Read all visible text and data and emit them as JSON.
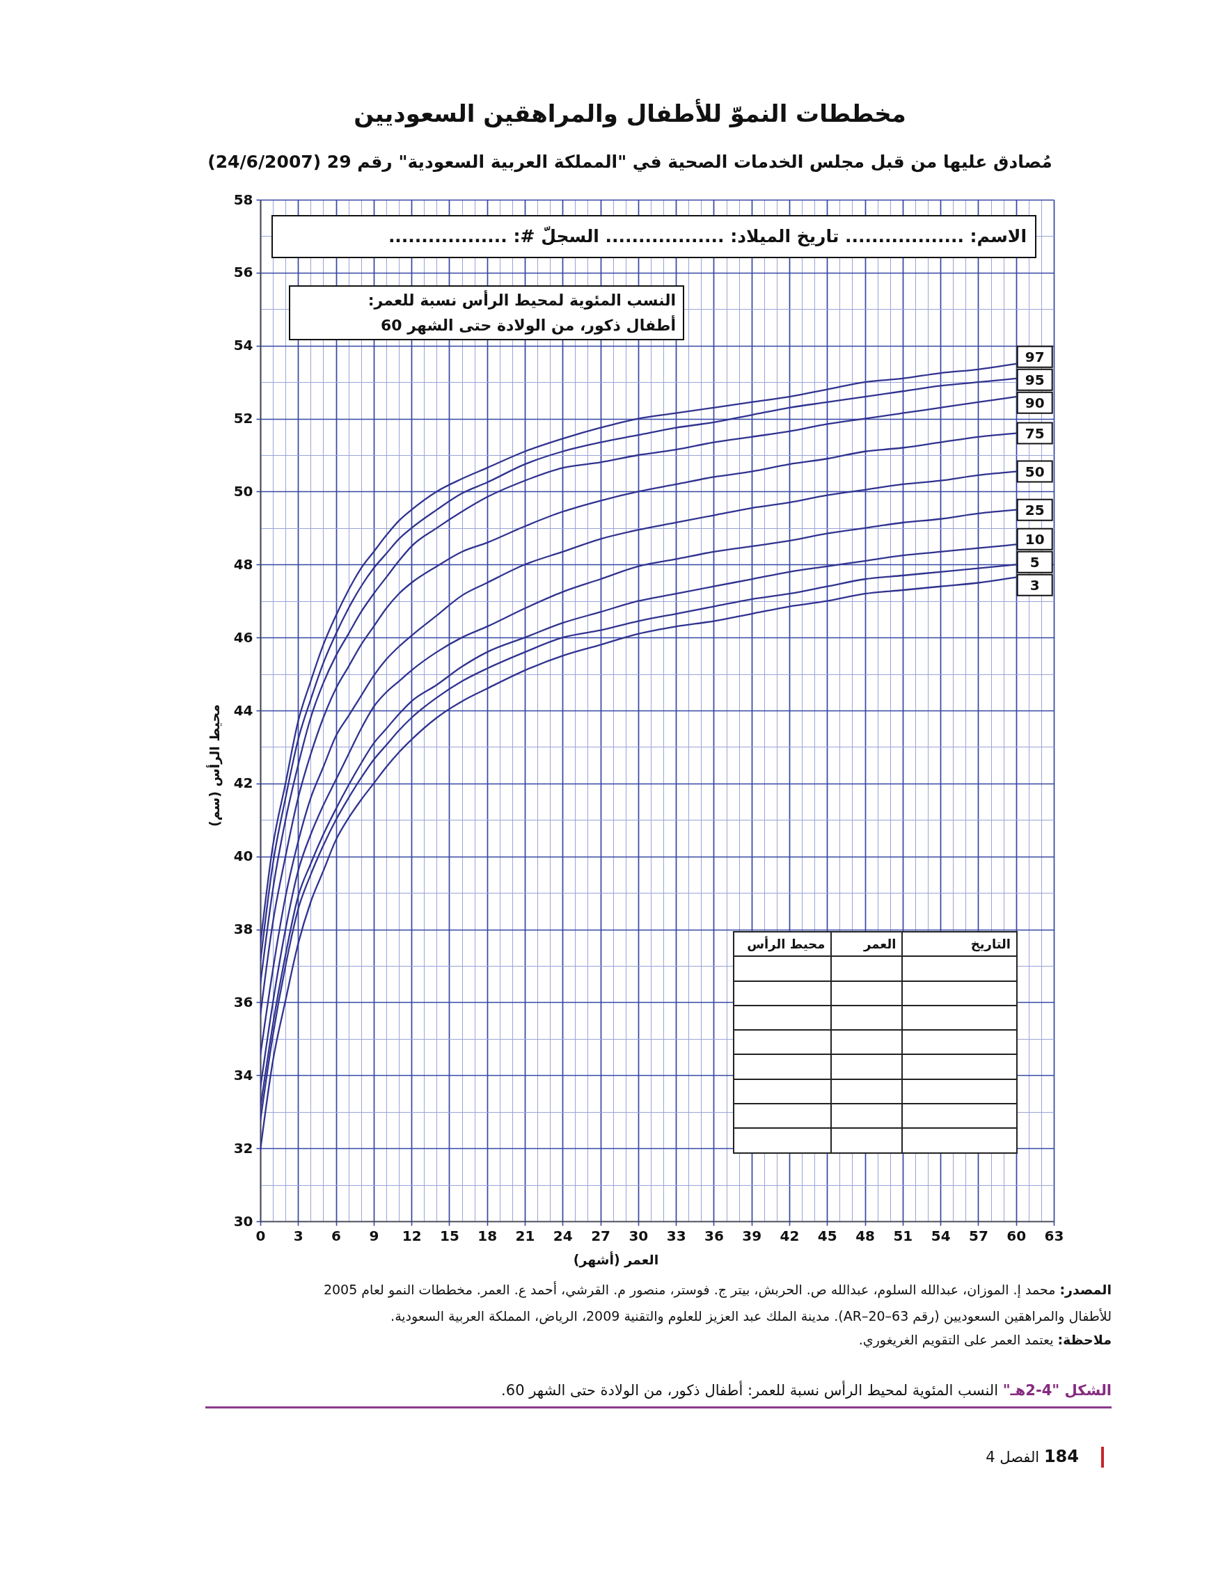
{
  "chart_data": {
    "type": "line",
    "title": "مخططات النموّ للأطفال والمراهقين السعوديين",
    "subtitle": "مُصادق عليها من قبل مجلس الخدمات الصحية في \"المملكة العربية السعودية\" رقم 29 (24/6/2007)",
    "xlabel": "العمر (أشهر)",
    "ylabel": "محيط الرأس (سم)",
    "annotations": [
      "الاسم: .................. تاريخ الميلاد: .................. السجلّ #: ..................",
      "النسب المئوية لمحيط الرأس نسبة للعمر:",
      "أطفال ذكور، من الولادة حتى الشهر 60",
      "التاريخ",
      "العمر",
      "محيط الرأس",
      "المصدر:",
      "محمد إ. الموزان، عبدالله السلوم، عبدالله ص. الحربش، بيتر ج. فوستر، منصور م. القرشي، أحمد ع. العمر. مخططات النمو لعام 2005",
      "للأطفال والمراهقين السعوديين (رقم AR–20–63). مدينة الملك عبد العزيز للعلوم والتقنية 2009، الرياض، المملكة العربية السعودية.",
      "ملاحظة:",
      "يعتمد العمر على التقويم الغريغوري.",
      "الشكل \"4-2هـ\"",
      "النسب المئوية لمحيط الرأس نسبة للعمر: أطفال ذكور، من الولادة حتى الشهر 60.",
      "184",
      "الفصل 4"
    ],
    "x": [
      0,
      1,
      2,
      3,
      4,
      5,
      6,
      7,
      8,
      9,
      10,
      11,
      12,
      14,
      16,
      18,
      21,
      24,
      27,
      30,
      33,
      36,
      39,
      42,
      45,
      48,
      51,
      54,
      57,
      60
    ],
    "series": [
      {
        "name": "97",
        "color": "#30338f",
        "values": [
          37.6,
          40.3,
          42.0,
          43.7,
          44.8,
          45.8,
          46.6,
          47.3,
          47.9,
          48.35,
          48.8,
          49.2,
          49.5,
          50.0,
          50.35,
          50.65,
          51.1,
          51.45,
          51.75,
          52.0,
          52.15,
          52.3,
          52.45,
          52.6,
          52.8,
          53.0,
          53.1,
          53.25,
          53.35,
          53.5
        ]
      },
      {
        "name": "95",
        "color": "#30338f",
        "values": [
          37.1,
          39.8,
          41.6,
          43.2,
          44.3,
          45.3,
          46.1,
          46.8,
          47.4,
          47.9,
          48.3,
          48.7,
          49.0,
          49.5,
          49.95,
          50.25,
          50.75,
          51.1,
          51.35,
          51.55,
          51.75,
          51.9,
          52.1,
          52.3,
          52.45,
          52.6,
          52.75,
          52.9,
          53.0,
          53.1
        ]
      },
      {
        "name": "90",
        "color": "#30338f",
        "values": [
          36.5,
          39.1,
          41.0,
          42.5,
          43.8,
          44.75,
          45.5,
          46.1,
          46.7,
          47.2,
          47.65,
          48.1,
          48.5,
          49.0,
          49.45,
          49.85,
          50.3,
          50.65,
          50.8,
          51.0,
          51.15,
          51.35,
          51.5,
          51.65,
          51.85,
          52.0,
          52.15,
          52.3,
          52.45,
          52.6
        ]
      },
      {
        "name": "75",
        "color": "#30338f",
        "values": [
          35.65,
          38.2,
          40.0,
          41.6,
          42.8,
          43.8,
          44.6,
          45.2,
          45.8,
          46.3,
          46.8,
          47.2,
          47.5,
          47.95,
          48.35,
          48.6,
          49.05,
          49.45,
          49.75,
          50.0,
          50.2,
          50.4,
          50.55,
          50.75,
          50.9,
          51.1,
          51.2,
          51.35,
          51.5,
          51.6
        ]
      },
      {
        "name": "50",
        "color": "#30338f",
        "values": [
          34.55,
          36.9,
          38.9,
          40.4,
          41.6,
          42.45,
          43.3,
          43.85,
          44.4,
          44.95,
          45.4,
          45.75,
          46.05,
          46.6,
          47.15,
          47.5,
          48.0,
          48.35,
          48.7,
          48.95,
          49.15,
          49.35,
          49.55,
          49.7,
          49.9,
          50.05,
          50.2,
          50.3,
          50.45,
          50.55
        ]
      },
      {
        "name": "25",
        "color": "#30338f",
        "values": [
          33.65,
          36.0,
          38.0,
          39.6,
          40.6,
          41.4,
          42.1,
          42.8,
          43.5,
          44.1,
          44.5,
          44.8,
          45.1,
          45.6,
          46.0,
          46.3,
          46.8,
          47.25,
          47.6,
          47.95,
          48.15,
          48.35,
          48.5,
          48.65,
          48.85,
          49.0,
          49.15,
          49.25,
          49.4,
          49.5
        ]
      },
      {
        "name": "10",
        "color": "#30338f",
        "values": [
          33.1,
          35.4,
          37.3,
          38.9,
          39.8,
          40.6,
          41.3,
          41.95,
          42.55,
          43.1,
          43.5,
          43.9,
          44.25,
          44.7,
          45.2,
          45.6,
          46.0,
          46.4,
          46.7,
          47.0,
          47.2,
          47.4,
          47.6,
          47.8,
          47.95,
          48.1,
          48.25,
          48.35,
          48.45,
          48.55
        ]
      },
      {
        "name": "5",
        "color": "#30338f",
        "values": [
          32.75,
          35.1,
          37.0,
          38.55,
          39.5,
          40.3,
          41.0,
          41.6,
          42.15,
          42.65,
          43.05,
          43.45,
          43.8,
          44.35,
          44.8,
          45.15,
          45.6,
          46.0,
          46.2,
          46.45,
          46.65,
          46.85,
          47.05,
          47.2,
          47.4,
          47.6,
          47.7,
          47.8,
          47.9,
          48.0
        ]
      },
      {
        "name": "3",
        "color": "#30338f",
        "values": [
          31.95,
          34.4,
          36.05,
          37.6,
          38.75,
          39.6,
          40.45,
          41.05,
          41.55,
          42.0,
          42.45,
          42.85,
          43.2,
          43.8,
          44.25,
          44.6,
          45.1,
          45.5,
          45.8,
          46.1,
          46.3,
          46.45,
          46.65,
          46.85,
          47.0,
          47.2,
          47.3,
          47.4,
          47.5,
          47.65
        ]
      }
    ],
    "xlim": [
      0,
      63
    ],
    "xticks": [
      0,
      {
        "value": 1,
        "label": null
      },
      {
        "value": 2,
        "label": null
      },
      3,
      {
        "value": 4,
        "label": null
      },
      {
        "value": 5,
        "label": null
      },
      6,
      {
        "value": 7,
        "label": null
      },
      {
        "value": 8,
        "label": null
      },
      9,
      {
        "value": 10,
        "label": null
      },
      {
        "value": 11,
        "label": null
      },
      12,
      {
        "value": 13,
        "label": null
      },
      {
        "value": 14,
        "label": null
      },
      15,
      {
        "value": 16,
        "label": null
      },
      {
        "value": 17,
        "label": null
      },
      18,
      {
        "value": 19,
        "label": null
      },
      {
        "value": 20,
        "label": null
      },
      21,
      {
        "value": 22,
        "label": null
      },
      {
        "value": 23,
        "label": null
      },
      24,
      {
        "value": 25,
        "label": null
      },
      {
        "value": 26,
        "label": null
      },
      27,
      {
        "value": 28,
        "label": null
      },
      {
        "value": 29,
        "label": null
      },
      30,
      {
        "value": 31,
        "label": null
      },
      {
        "value": 32,
        "label": null
      },
      33,
      {
        "value": 34,
        "label": null
      },
      {
        "value": 35,
        "label": null
      },
      36,
      {
        "value": 37,
        "label": null
      },
      {
        "value": 38,
        "label": null
      },
      39,
      {
        "value": 40,
        "label": null
      },
      {
        "value": 41,
        "label": null
      },
      42,
      {
        "value": 43,
        "label": null
      },
      {
        "value": 44,
        "label": null
      },
      45,
      {
        "value": 46,
        "label": null
      },
      {
        "value": 47,
        "label": null
      },
      48,
      {
        "value": 49,
        "label": null
      },
      {
        "value": 50,
        "label": null
      },
      51,
      {
        "value": 52,
        "label": null
      },
      {
        "value": 53,
        "label": null
      },
      54,
      {
        "value": 55,
        "label": null
      },
      {
        "value": 56,
        "label": null
      },
      57,
      {
        "value": 58,
        "label": null
      },
      {
        "value": 59,
        "label": null
      },
      60,
      {
        "value": 61,
        "label": null
      },
      {
        "value": 62,
        "label": null
      },
      63
    ],
    "ylim": [
      30,
      58
    ],
    "yticks": [
      30,
      {
        "value": 31,
        "label": null
      },
      32,
      {
        "value": 33,
        "label": null
      },
      34,
      {
        "value": 35,
        "label": null
      },
      36,
      {
        "value": 37,
        "label": null
      },
      38,
      {
        "value": 39,
        "label": null
      },
      40,
      {
        "value": 41,
        "label": null
      },
      42,
      {
        "value": 43,
        "label": null
      },
      44,
      {
        "value": 45,
        "label": null
      },
      46,
      {
        "value": 47,
        "label": null
      },
      48,
      {
        "value": 49,
        "label": null
      },
      50,
      {
        "value": 51,
        "label": null
      },
      52,
      {
        "value": 53,
        "label": null
      },
      54,
      {
        "value": 55,
        "label": null
      },
      56,
      {
        "value": 57,
        "label": null
      },
      58
    ],
    "grid": true
  }
}
